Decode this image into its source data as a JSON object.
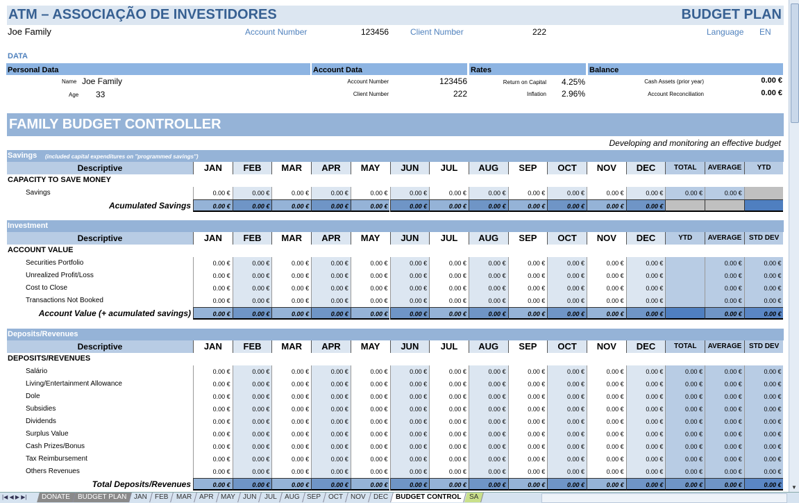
{
  "header": {
    "title": "ATM – ASSOCIAÇÃO DE INVESTIDORES",
    "plan": "BUDGET PLAN",
    "family": "Joe Family",
    "account_label": "Account Number",
    "account_value": "123456",
    "client_label": "Client Number",
    "client_value": "222",
    "language_label": "Language",
    "language_value": "EN"
  },
  "data_section": {
    "title": "DATA",
    "personal": {
      "title": "Personal Data",
      "name_label": "Name",
      "name_value": "Joe Family",
      "age_label": "Age",
      "age_value": "33"
    },
    "account": {
      "title": "Account Data",
      "account_label": "Account Number",
      "account_value": "123456",
      "client_label": "Client Number",
      "client_value": "222"
    },
    "rates": {
      "title": "Rates",
      "roc_label": "Return on Capital",
      "roc_value": "4.25%",
      "inflation_label": "Inflation",
      "inflation_value": "2.96%"
    },
    "balance": {
      "title": "Balance",
      "cash_label": "Cash Assets (prior year)",
      "cash_value": "0.00 €",
      "recon_label": "Account Reconciliation",
      "recon_value": "0.00 €"
    }
  },
  "controller": {
    "title": "FAMILY BUDGET CONTROLLER",
    "subtitle": "Developing and monitoring an effective budget"
  },
  "months": [
    "JAN",
    "FEB",
    "MAR",
    "APR",
    "MAY",
    "JUN",
    "JUL",
    "AUG",
    "SEP",
    "OCT",
    "NOV",
    "DEC"
  ],
  "sections": [
    {
      "title": "Savings",
      "note": "(included capital expenditures on ''programmed savings'')",
      "descriptive": "Descriptive",
      "extra_headers": [
        "TOTAL",
        "AVERAGE",
        "YTD"
      ],
      "group": "CAPACITY TO SAVE MONEY",
      "rows": [
        {
          "label": "Savings",
          "values": [
            "0.00 €",
            "0.00 €",
            "0.00 €",
            "0.00 €",
            "0.00 €",
            "0.00 €",
            "0.00 €",
            "0.00 €",
            "0.00 €",
            "0.00 €",
            "0.00 €",
            "0.00 €",
            "0.00 €",
            "0.00 €",
            ""
          ]
        }
      ],
      "total": {
        "label": "Acumulated Savings",
        "values": [
          "0.00 €",
          "0.00 €",
          "0.00 €",
          "0.00 €",
          "0.00 €",
          "0.00 €",
          "0.00 €",
          "0.00 €",
          "0.00 €",
          "0.00 €",
          "0.00 €",
          "0.00 €",
          "",
          "",
          ""
        ]
      }
    },
    {
      "title": "Investment",
      "note": "",
      "descriptive": "Descriptive",
      "extra_headers": [
        "YTD",
        "AVERAGE",
        "STD DEV"
      ],
      "group": "ACCOUNT VALUE",
      "rows": [
        {
          "label": "Securities Portfolio",
          "values": [
            "0.00 €",
            "0.00 €",
            "0.00 €",
            "0.00 €",
            "0.00 €",
            "0.00 €",
            "0.00 €",
            "0.00 €",
            "0.00 €",
            "0.00 €",
            "0.00 €",
            "0.00 €",
            "",
            "0.00 €",
            "0.00 €"
          ]
        },
        {
          "label": "Unrealized Profit/Loss",
          "values": [
            "0.00 €",
            "0.00 €",
            "0.00 €",
            "0.00 €",
            "0.00 €",
            "0.00 €",
            "0.00 €",
            "0.00 €",
            "0.00 €",
            "0.00 €",
            "0.00 €",
            "0.00 €",
            "",
            "0.00 €",
            "0.00 €"
          ]
        },
        {
          "label": "Cost to Close",
          "values": [
            "0.00 €",
            "0.00 €",
            "0.00 €",
            "0.00 €",
            "0.00 €",
            "0.00 €",
            "0.00 €",
            "0.00 €",
            "0.00 €",
            "0.00 €",
            "0.00 €",
            "0.00 €",
            "",
            "0.00 €",
            "0.00 €"
          ]
        },
        {
          "label": "Transactions Not Booked",
          "values": [
            "0.00 €",
            "0.00 €",
            "0.00 €",
            "0.00 €",
            "0.00 €",
            "0.00 €",
            "0.00 €",
            "0.00 €",
            "0.00 €",
            "0.00 €",
            "0.00 €",
            "0.00 €",
            "",
            "0.00 €",
            "0.00 €"
          ]
        }
      ],
      "total": {
        "label": "Account Value (+ acumulated savings)",
        "values": [
          "0.00 €",
          "0.00 €",
          "0.00 €",
          "0.00 €",
          "0.00 €",
          "0.00 €",
          "0.00 €",
          "0.00 €",
          "0.00 €",
          "0.00 €",
          "0.00 €",
          "0.00 €",
          "",
          "0.00 €",
          "0.00 €"
        ]
      }
    },
    {
      "title": "Deposits/Revenues",
      "note": "",
      "descriptive": "Descriptive",
      "extra_headers": [
        "TOTAL",
        "AVERAGE",
        "STD DEV"
      ],
      "group": "DEPOSITS/REVENUES",
      "rows": [
        {
          "label": "Salário",
          "values": [
            "0.00 €",
            "0.00 €",
            "0.00 €",
            "0.00 €",
            "0.00 €",
            "0.00 €",
            "0.00 €",
            "0.00 €",
            "0.00 €",
            "0.00 €",
            "0.00 €",
            "0.00 €",
            "0.00 €",
            "0.00 €",
            "0.00 €"
          ]
        },
        {
          "label": "Living/Entertainment Allowance",
          "values": [
            "0.00 €",
            "0.00 €",
            "0.00 €",
            "0.00 €",
            "0.00 €",
            "0.00 €",
            "0.00 €",
            "0.00 €",
            "0.00 €",
            "0.00 €",
            "0.00 €",
            "0.00 €",
            "0.00 €",
            "0.00 €",
            "0.00 €"
          ]
        },
        {
          "label": "Dole",
          "values": [
            "0.00 €",
            "0.00 €",
            "0.00 €",
            "0.00 €",
            "0.00 €",
            "0.00 €",
            "0.00 €",
            "0.00 €",
            "0.00 €",
            "0.00 €",
            "0.00 €",
            "0.00 €",
            "0.00 €",
            "0.00 €",
            "0.00 €"
          ]
        },
        {
          "label": "Subsidies",
          "values": [
            "0.00 €",
            "0.00 €",
            "0.00 €",
            "0.00 €",
            "0.00 €",
            "0.00 €",
            "0.00 €",
            "0.00 €",
            "0.00 €",
            "0.00 €",
            "0.00 €",
            "0.00 €",
            "0.00 €",
            "0.00 €",
            "0.00 €"
          ]
        },
        {
          "label": "Dividends",
          "values": [
            "0.00 €",
            "0.00 €",
            "0.00 €",
            "0.00 €",
            "0.00 €",
            "0.00 €",
            "0.00 €",
            "0.00 €",
            "0.00 €",
            "0.00 €",
            "0.00 €",
            "0.00 €",
            "0.00 €",
            "0.00 €",
            "0.00 €"
          ]
        },
        {
          "label": "Surplus Value",
          "values": [
            "0.00 €",
            "0.00 €",
            "0.00 €",
            "0.00 €",
            "0.00 €",
            "0.00 €",
            "0.00 €",
            "0.00 €",
            "0.00 €",
            "0.00 €",
            "0.00 €",
            "0.00 €",
            "0.00 €",
            "0.00 €",
            "0.00 €"
          ]
        },
        {
          "label": "Cash Prizes/Bonus",
          "values": [
            "0.00 €",
            "0.00 €",
            "0.00 €",
            "0.00 €",
            "0.00 €",
            "0.00 €",
            "0.00 €",
            "0.00 €",
            "0.00 €",
            "0.00 €",
            "0.00 €",
            "0.00 €",
            "0.00 €",
            "0.00 €",
            "0.00 €"
          ]
        },
        {
          "label": "Tax Reimbursement",
          "values": [
            "0.00 €",
            "0.00 €",
            "0.00 €",
            "0.00 €",
            "0.00 €",
            "0.00 €",
            "0.00 €",
            "0.00 €",
            "0.00 €",
            "0.00 €",
            "0.00 €",
            "0.00 €",
            "0.00 €",
            "0.00 €",
            "0.00 €"
          ]
        },
        {
          "label": "Others Revenues",
          "values": [
            "0.00 €",
            "0.00 €",
            "0.00 €",
            "0.00 €",
            "0.00 €",
            "0.00 €",
            "0.00 €",
            "0.00 €",
            "0.00 €",
            "0.00 €",
            "0.00 €",
            "0.00 €",
            "0.00 €",
            "0.00 €",
            "0.00 €"
          ]
        }
      ],
      "total": {
        "label": "Total Deposits/Revenues",
        "values": [
          "0.00 €",
          "0.00 €",
          "0.00 €",
          "0.00 €",
          "0.00 €",
          "0.00 €",
          "0.00 €",
          "0.00 €",
          "0.00 €",
          "0.00 €",
          "0.00 €",
          "0.00 €",
          "0.00 €",
          "0.00 €",
          "0.00 €"
        ]
      }
    }
  ],
  "sheet_tabs": [
    "DONATE",
    "BUDGET PLAN",
    "JAN",
    "FEB",
    "MAR",
    "APR",
    "MAY",
    "JUN",
    "JUL",
    "AUG",
    "SEP",
    "OCT",
    "NOV",
    "DEC",
    "BUDGET CONTROL",
    "SA"
  ],
  "active_tab": "BUDGET CONTROL",
  "colors": {
    "title": "#376092",
    "band": "#8db4e2",
    "controller": "#95b3d7",
    "light": "#dce6f1",
    "summary": "#b8cce4",
    "total_a": "#95b3d7",
    "total_b": "#6f95c6"
  }
}
